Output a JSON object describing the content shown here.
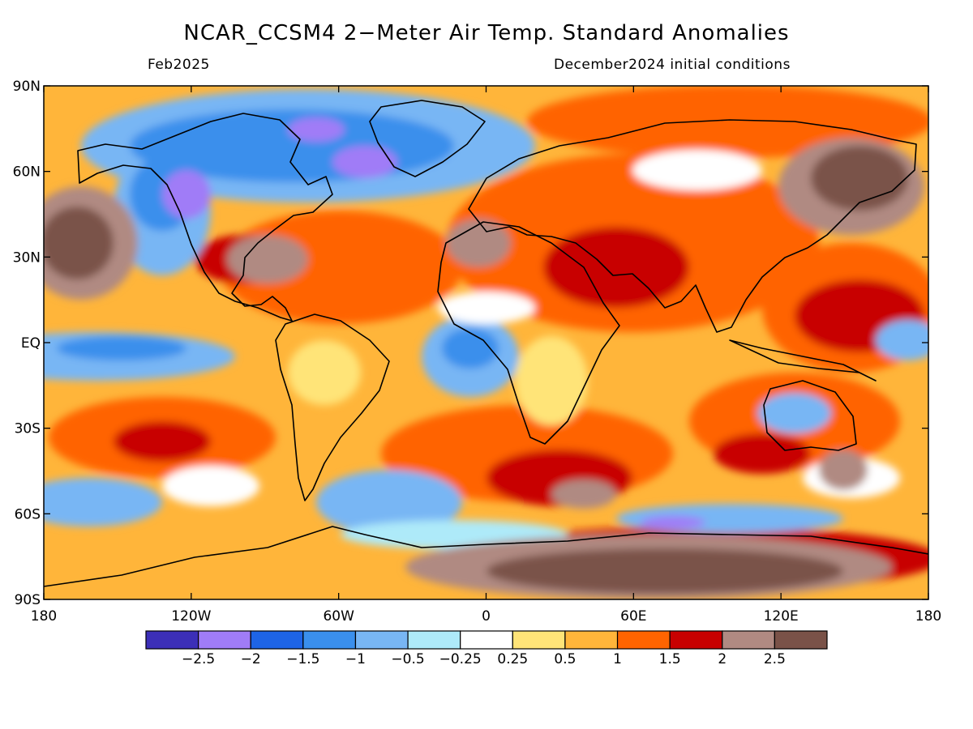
{
  "title": "NCAR_CCSM4 2−Meter Air Temp. Standard Anomalies",
  "valid_month": "Feb2025",
  "init_conditions": "December2024 initial conditions",
  "map": {
    "lat_labels": [
      "90N",
      "60N",
      "30N",
      "EQ",
      "30S",
      "60S",
      "90S"
    ],
    "lon_labels": [
      "180",
      "120W",
      "60W",
      "0",
      "60E",
      "120E",
      "180"
    ]
  },
  "colorbar": {
    "colors": [
      "#3c2fb8",
      "#a07cf7",
      "#1e64e6",
      "#3a8fec",
      "#78b6f4",
      "#aeeaf9",
      "#ffffff",
      "#ffe478",
      "#ffb53a",
      "#ff6400",
      "#c80000",
      "#b08a82",
      "#7a5248"
    ],
    "labels": [
      "−2.5",
      "−2",
      "−1.5",
      "−1",
      "−0.5",
      "−0.25",
      "0.25",
      "0.5",
      "1",
      "1.5",
      "2",
      "2.5"
    ]
  }
}
